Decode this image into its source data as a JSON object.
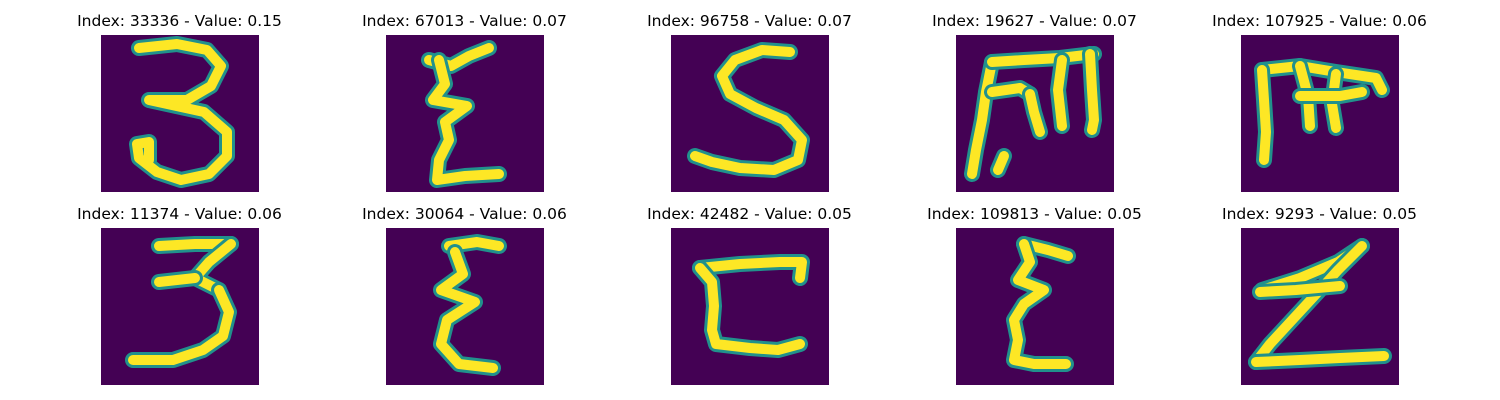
{
  "colors": {
    "background": "#440154",
    "mid": "#21918c",
    "stroke": "#fde725"
  },
  "panels": [
    {
      "title": "Index: 33336 - Value: 0.15",
      "glyph": "3",
      "strokes": [
        "M140,48 L178,44 L208,50 L222,66 L212,86 L188,100 L150,100 L205,112 L228,132 L228,156 L210,174 L182,180 L158,172 L140,158 L138,144 L150,142 L150,160"
      ]
    },
    {
      "title": "Index: 67013 - Value: 0.07",
      "glyph": "Ꜫ",
      "strokes": [
        "M430,60 L452,66 L470,56 L490,48",
        "M440,60 L446,84 L434,100 L468,106 L446,122 L450,140 L440,160 L438,180 L466,176 L500,174"
      ]
    },
    {
      "title": "Index: 96758 - Value: 0.07",
      "glyph": "S",
      "strokes": [
        "M790,52 L762,50 L735,60 L722,76 L730,94 L756,108 L784,120 L802,140 L798,160 L774,170 L740,168 L712,162 L695,156"
      ]
    },
    {
      "title": "Index: 19627 - Value: 0.07",
      "glyph": "m",
      "strokes": [
        "M972,174 L976,150 L982,120 L986,92 L992,62",
        "M992,62 L1024,60 L1060,58 L1094,54",
        "M992,92 L1020,88 L1030,94",
        "M1030,94 L1034,112 L1040,132",
        "M1062,60 L1058,90 L1062,126",
        "M1090,54 L1092,90 L1094,120 L1092,130",
        "M1004,156 L998,170"
      ]
    },
    {
      "title": "Index: 107925 - Value: 0.06",
      "glyph": "m",
      "strokes": [
        "M1262,70 L1300,66 L1336,72 L1376,78 L1382,90",
        "M1262,70 L1264,100 L1266,132 L1264,160",
        "M1300,66 L1308,96 L1310,126",
        "M1336,74 L1332,104 L1336,128",
        "M1300,96 L1340,96 L1362,92"
      ]
    },
    {
      "title": "Index: 11374 - Value: 0.06",
      "glyph": "3",
      "strokes": [
        "M160,246 L196,244 L232,244",
        "M232,244 L210,262 L196,278 L220,290",
        "M196,278 L160,282",
        "M220,290 L230,312 L224,336 L204,350 L174,360 L134,360"
      ]
    },
    {
      "title": "Index: 30064 - Value: 0.06",
      "glyph": "Ꜫ",
      "strokes": [
        "M450,246 L478,242 L500,246",
        "M456,252 L464,274 L442,290 L476,302 L448,320 L442,344 L460,364 L494,368"
      ]
    },
    {
      "title": "Index: 42482 - Value: 0.05",
      "glyph": "ᑕ",
      "strokes": [
        "M700,268 L740,264 L780,262 L802,262 L800,278",
        "M700,268 L712,282 L714,306 L712,330 L716,344 L750,348 L778,350 L800,344"
      ]
    },
    {
      "title": "Index: 109813 - Value: 0.05",
      "glyph": "Ɛ",
      "strokes": [
        "M1024,244 L1048,250 L1068,256",
        "M1024,244 L1030,262 L1018,280 L1044,290 L1024,304 L1014,320 L1018,340 L1014,360 L1034,364 L1066,364"
      ]
    },
    {
      "title": "Index: 9293 - Value: 0.05",
      "glyph": "Ƶ",
      "strokes": [
        "M1262,290 L1300,278 L1338,262 L1362,246",
        "M1362,246 L1338,270 L1318,292 L1294,318 L1270,344 L1256,362",
        "M1256,362 L1300,360 L1340,358 L1384,356",
        "M1260,292 L1296,290 L1340,286"
      ]
    }
  ]
}
